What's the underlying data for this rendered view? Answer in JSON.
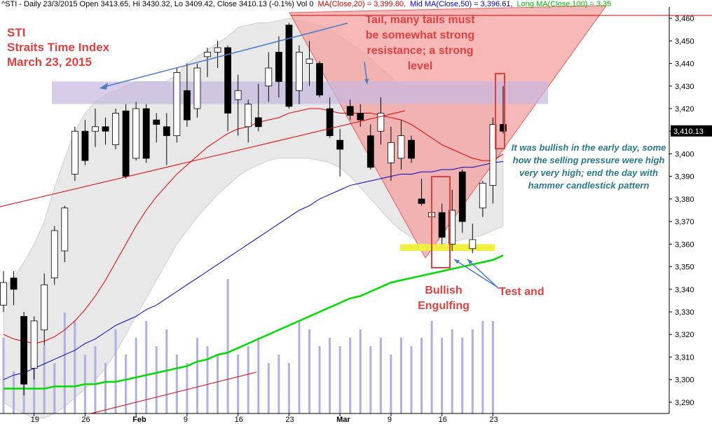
{
  "header": {
    "symbol_info": "^STI - Daily 23/3/2015 Open 3413.65, Hi 3430.32, Lo 3409.42, Close 3410.13 (-0.1%) Vol 0",
    "ma20": "MA(Close,20) = 3,399.80,",
    "ma50": "Mid MA(Close,50) = 3,396.61,",
    "ma100": "Long MA(Close,100) = 3,35"
  },
  "title": {
    "line1": "STI",
    "line2": "Straits Time Index",
    "line3": "March 23, 2015"
  },
  "annotations": {
    "tail": "Tail, many tails must be somewhat strong resistance; a strong level",
    "bullish": "It was bullish in the early day, some how the selling pressure were high very very high; end the day with hammer candlestick pattern",
    "engulfing": "Bullish Engulfing",
    "test": "Test and"
  },
  "last_price_label": "3,410.13",
  "colors": {
    "ma20": "#dd0000",
    "ma50": "#0000cc",
    "ma100": "#00dd00",
    "bull_candle": "#ffffff",
    "bear_candle": "#000000",
    "volume": "#b0b0e0",
    "band_fill": "#e8e8e8",
    "resistance_zone": "#c8b8e0",
    "support_line": "#f0f040",
    "triangle_fill": "#f4a0a0",
    "annotation_red": "#e04040",
    "annotation_teal": "#2a7a8a"
  },
  "chart_data": {
    "type": "candlestick",
    "ylim": [
      3285,
      3465
    ],
    "yticks": [
      3290,
      3300,
      3310,
      3320,
      3330,
      3340,
      3350,
      3360,
      3370,
      3380,
      3390,
      3400,
      3410,
      3420,
      3430,
      3440,
      3450,
      3460
    ],
    "ytick_labels": [
      "3,290",
      "3,300",
      "3,310",
      "3,320",
      "3,330",
      "3,340",
      "3,350",
      "3,360",
      "3,370",
      "3,380",
      "3,390",
      "3,400",
      "3,410",
      "3,420",
      "3,430",
      "3,440",
      "3,450",
      "3,460"
    ],
    "xtick_labels": [
      {
        "i": 3,
        "label": "19"
      },
      {
        "i": 8,
        "label": "26"
      },
      {
        "i": 13,
        "label": "Feb"
      },
      {
        "i": 18,
        "label": "9"
      },
      {
        "i": 23,
        "label": "16"
      },
      {
        "i": 28,
        "label": "23"
      },
      {
        "i": 33,
        "label": "Mar"
      },
      {
        "i": 38,
        "label": "9"
      },
      {
        "i": 43,
        "label": "16"
      },
      {
        "i": 48,
        "label": "23"
      }
    ],
    "candles": [
      {
        "o": 3333,
        "h": 3348,
        "l": 3330,
        "c": 3343
      },
      {
        "o": 3345,
        "h": 3348,
        "l": 3333,
        "c": 3340
      },
      {
        "o": 3328,
        "h": 3330,
        "l": 3293,
        "c": 3298
      },
      {
        "o": 3305,
        "h": 3328,
        "l": 3300,
        "c": 3326
      },
      {
        "o": 3322,
        "h": 3347,
        "l": 3315,
        "c": 3342
      },
      {
        "o": 3345,
        "h": 3368,
        "l": 3342,
        "c": 3366
      },
      {
        "o": 3357,
        "h": 3377,
        "l": 3352,
        "c": 3376
      },
      {
        "o": 3391,
        "h": 3412,
        "l": 3388,
        "c": 3410
      },
      {
        "o": 3410,
        "h": 3415,
        "l": 3395,
        "c": 3397
      },
      {
        "o": 3410,
        "h": 3420,
        "l": 3403,
        "c": 3412
      },
      {
        "o": 3412,
        "h": 3416,
        "l": 3404,
        "c": 3410
      },
      {
        "o": 3404,
        "h": 3420,
        "l": 3402,
        "c": 3418
      },
      {
        "o": 3419,
        "h": 3422,
        "l": 3389,
        "c": 3390
      },
      {
        "o": 3398,
        "h": 3423,
        "l": 3397,
        "c": 3420
      },
      {
        "o": 3420,
        "h": 3422,
        "l": 3396,
        "c": 3398
      },
      {
        "o": 3415,
        "h": 3418,
        "l": 3405,
        "c": 3413
      },
      {
        "o": 3412,
        "h": 3418,
        "l": 3395,
        "c": 3408
      },
      {
        "o": 3408,
        "h": 3438,
        "l": 3405,
        "c": 3436
      },
      {
        "o": 3428,
        "h": 3440,
        "l": 3412,
        "c": 3415
      },
      {
        "o": 3420,
        "h": 3440,
        "l": 3416,
        "c": 3438
      },
      {
        "o": 3443,
        "h": 3447,
        "l": 3434,
        "c": 3445
      },
      {
        "o": 3445,
        "h": 3450,
        "l": 3438,
        "c": 3447
      },
      {
        "o": 3447,
        "h": 3448,
        "l": 3410,
        "c": 3418
      },
      {
        "o": 3424,
        "h": 3435,
        "l": 3408,
        "c": 3428
      },
      {
        "o": 3412,
        "h": 3424,
        "l": 3405,
        "c": 3422
      },
      {
        "o": 3416,
        "h": 3431,
        "l": 3410,
        "c": 3412
      },
      {
        "o": 3430,
        "h": 3445,
        "l": 3423,
        "c": 3438
      },
      {
        "o": 3445,
        "h": 3452,
        "l": 3425,
        "c": 3432
      },
      {
        "o": 3457,
        "h": 3458,
        "l": 3420,
        "c": 3421
      },
      {
        "o": 3428,
        "h": 3448,
        "l": 3422,
        "c": 3445
      },
      {
        "o": 3440,
        "h": 3450,
        "l": 3430,
        "c": 3442
      },
      {
        "o": 3440,
        "h": 3441,
        "l": 3425,
        "c": 3426
      },
      {
        "o": 3420,
        "h": 3425,
        "l": 3407,
        "c": 3408
      },
      {
        "o": 3406,
        "h": 3411,
        "l": 3390,
        "c": 3402
      },
      {
        "o": 3421,
        "h": 3424,
        "l": 3415,
        "c": 3417
      },
      {
        "o": 3418,
        "h": 3422,
        "l": 3412,
        "c": 3415
      },
      {
        "o": 3408,
        "h": 3413,
        "l": 3393,
        "c": 3394
      },
      {
        "o": 3410,
        "h": 3425,
        "l": 3404,
        "c": 3418
      },
      {
        "o": 3396,
        "h": 3412,
        "l": 3388,
        "c": 3405
      },
      {
        "o": 3398,
        "h": 3415,
        "l": 3393,
        "c": 3408
      },
      {
        "o": 3406,
        "h": 3408,
        "l": 3396,
        "c": 3398
      },
      {
        "o": 3380,
        "h": 3389,
        "l": 3377,
        "c": 3378
      },
      {
        "o": 3372,
        "h": 3385,
        "l": 3360,
        "c": 3374
      },
      {
        "o": 3374,
        "h": 3378,
        "l": 3360,
        "c": 3363
      },
      {
        "o": 3360,
        "h": 3384,
        "l": 3357,
        "c": 3375
      },
      {
        "o": 3392,
        "h": 3393,
        "l": 3365,
        "c": 3370
      },
      {
        "o": 3358,
        "h": 3369,
        "l": 3356,
        "c": 3362
      },
      {
        "o": 3376,
        "h": 3388,
        "l": 3372,
        "c": 3387
      },
      {
        "o": 3386,
        "h": 3416,
        "l": 3378,
        "c": 3413
      },
      {
        "o": 3413,
        "h": 3430,
        "l": 3409,
        "c": 3410
      }
    ],
    "volume": [
      0.45,
      0.25,
      0.55,
      0.5,
      0.4,
      0.3,
      0.6,
      0.55,
      0.35,
      0.4,
      0.3,
      0.5,
      0.35,
      0.45,
      0.55,
      0.4,
      0.5,
      0.35,
      0.3,
      0.45,
      0.4,
      0.35,
      0.8,
      0.35,
      0.4,
      0.45,
      0.3,
      0.35,
      0.3,
      0.55,
      0.5,
      0.4,
      0.45,
      0.4,
      0.45,
      0.5,
      0.4,
      0.45,
      0.35,
      0.45,
      0.4,
      0.45,
      0.55,
      0.45,
      0.5,
      0.45,
      0.5,
      0.55,
      0.55,
      0.0
    ],
    "ma20": [
      3320,
      3318,
      3317,
      3316,
      3317,
      3319,
      3322,
      3326,
      3331,
      3337,
      3344,
      3352,
      3360,
      3368,
      3375,
      3381,
      3386,
      3391,
      3395,
      3399,
      3403,
      3406,
      3409,
      3411,
      3412,
      3414,
      3415,
      3416,
      3418,
      3419,
      3420,
      3420,
      3419,
      3418,
      3418,
      3418,
      3418,
      3417,
      3416,
      3415,
      3413,
      3410,
      3407,
      3404,
      3402,
      3400,
      3398,
      3397,
      3397,
      3399.8
    ],
    "ma50": [
      3300,
      3302,
      3303,
      3305,
      3307,
      3309,
      3311,
      3313,
      3316,
      3318,
      3321,
      3324,
      3326,
      3328,
      3331,
      3333,
      3336,
      3339,
      3342,
      3345,
      3348,
      3351,
      3354,
      3357,
      3360,
      3363,
      3366,
      3369,
      3372,
      3375,
      3377,
      3380,
      3382,
      3384,
      3386,
      3387,
      3388,
      3389,
      3390,
      3391,
      3391,
      3392,
      3392,
      3393,
      3393,
      3394,
      3394,
      3395,
      3396,
      3396.6
    ],
    "ma100": [
      3296,
      3296,
      3296,
      3296,
      3296,
      3297,
      3297,
      3297,
      3298,
      3298,
      3299,
      3299,
      3300,
      3301,
      3302,
      3303,
      3304,
      3305,
      3306,
      3308,
      3309,
      3311,
      3312,
      3314,
      3316,
      3318,
      3320,
      3322,
      3324,
      3326,
      3328,
      3330,
      3332,
      3334,
      3336,
      3337,
      3339,
      3341,
      3343,
      3344,
      3345,
      3346,
      3347,
      3348,
      3349,
      3350,
      3351,
      3352,
      3353,
      3355
    ],
    "band_upper": [
      3340,
      3345,
      3352,
      3360,
      3370,
      3385,
      3398,
      3410,
      3418,
      3423,
      3426,
      3428,
      3430,
      3432,
      3432,
      3432,
      3432,
      3435,
      3440,
      3443,
      3446,
      3449,
      3452,
      3456,
      3457,
      3458,
      3458,
      3459,
      3460,
      3459,
      3458,
      3457,
      3455,
      3452,
      3449,
      3446,
      3442,
      3438,
      3434,
      3430,
      3430,
      3430,
      3430,
      3430,
      3430,
      3430,
      3430,
      3430,
      3431,
      3432
    ],
    "band_lower": [
      3290,
      3287,
      3285,
      3283,
      3283,
      3285,
      3288,
      3292,
      3296,
      3300,
      3305,
      3312,
      3320,
      3328,
      3336,
      3344,
      3352,
      3360,
      3366,
      3372,
      3377,
      3382,
      3386,
      3390,
      3393,
      3395,
      3397,
      3398,
      3398,
      3398,
      3398,
      3397,
      3396,
      3394,
      3390,
      3385,
      3380,
      3375,
      3370,
      3366,
      3363,
      3361,
      3360,
      3360,
      3361,
      3362,
      3363,
      3364,
      3366,
      3368
    ]
  }
}
